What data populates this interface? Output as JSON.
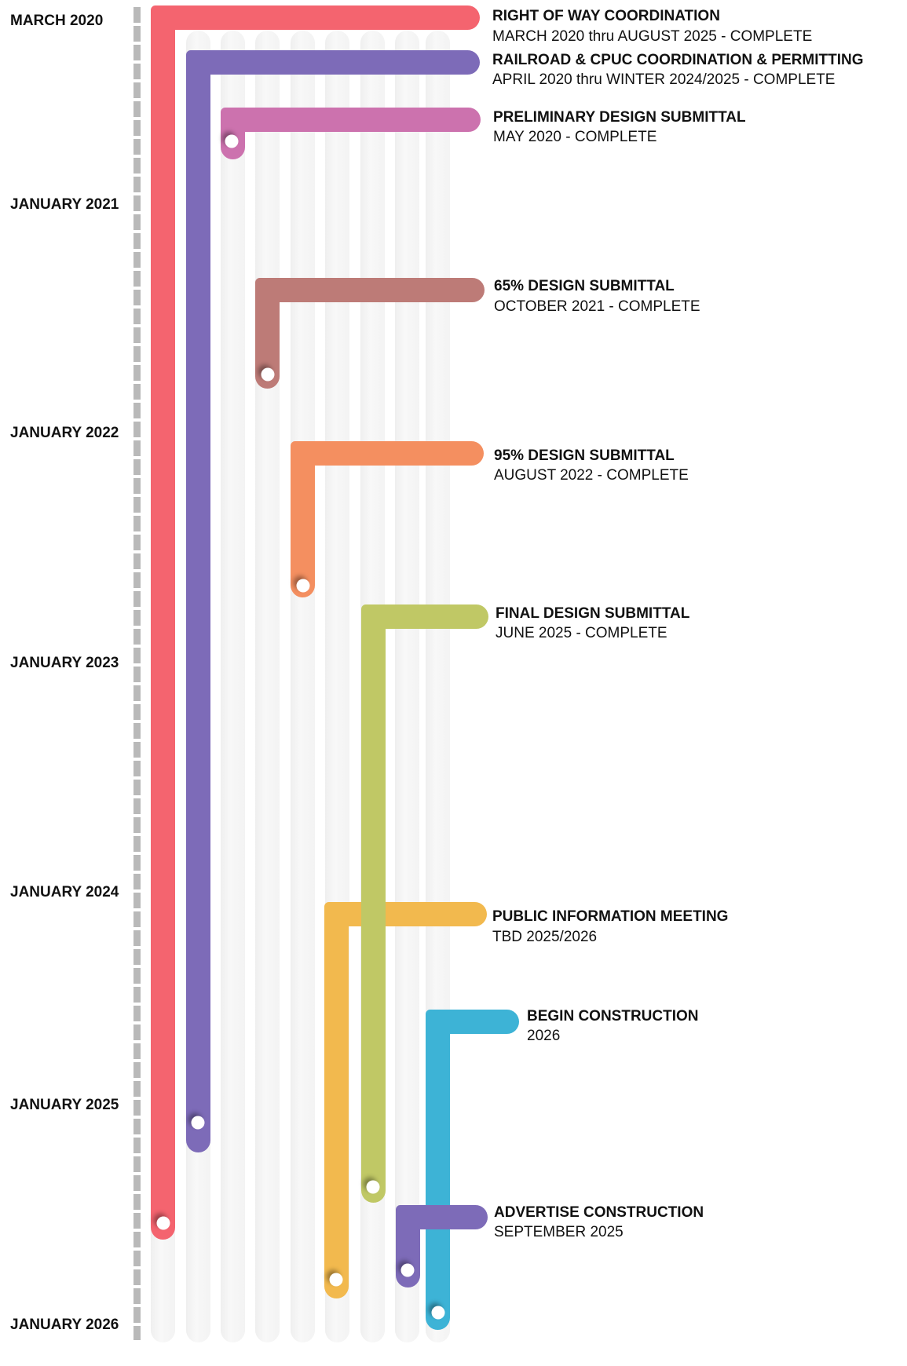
{
  "axis_labels": [
    "MARCH 2020",
    "JANUARY 2021",
    "JANUARY 2022",
    "JANUARY 2023",
    "JANUARY 2024",
    "JANUARY 2025",
    "JANUARY 2026"
  ],
  "milestones": [
    {
      "title": "RIGHT OF WAY COORDINATION",
      "subtitle": "MARCH 2020 thru AUGUST 2025 - COMPLETE",
      "color": "#f4646f"
    },
    {
      "title": "RAILROAD & CPUC COORDINATION & PERMITTING",
      "subtitle": "APRIL 2020 thru WINTER 2024/2025 - COMPLETE",
      "color": "#7d6bb8"
    },
    {
      "title": "PRELIMINARY DESIGN SUBMITTAL",
      "subtitle": "MAY 2020 - COMPLETE",
      "color": "#cc72ae"
    },
    {
      "title": "65% DESIGN SUBMITTAL",
      "subtitle": "OCTOBER 2021 - COMPLETE",
      "color": "#bd7b77"
    },
    {
      "title": "95% DESIGN SUBMITTAL",
      "subtitle": "AUGUST 2022 - COMPLETE",
      "color": "#f48f60"
    },
    {
      "title": "FINAL DESIGN SUBMITTAL",
      "subtitle": "JUNE 2025 - COMPLETE",
      "color": "#c0c865"
    },
    {
      "title": "PUBLIC INFORMATION MEETING",
      "subtitle": "TBD 2025/2026",
      "color": "#f2b94e"
    },
    {
      "title": "BEGIN CONSTRUCTION",
      "subtitle": "2026",
      "color": "#3db3d6"
    },
    {
      "title": "ADVERTISE CONSTRUCTION",
      "subtitle": "SEPTEMBER 2025",
      "color": "#7d6bb8"
    }
  ]
}
